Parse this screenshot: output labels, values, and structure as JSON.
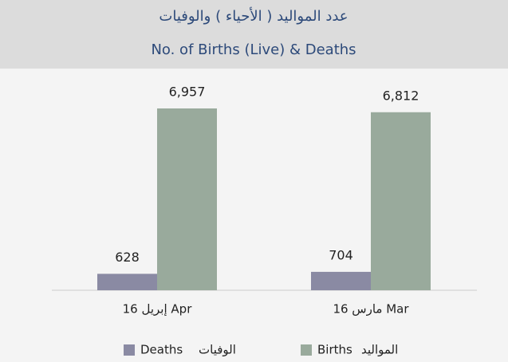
{
  "chart_data": {
    "type": "bar",
    "title": "عدد المواليد ( الأحياء ) والوفيات",
    "subtitle": "No. of Births (Live) & Deaths",
    "categories": [
      "إبريل 16 Apr",
      "مارس 16 Mar"
    ],
    "series": [
      {
        "name": "Deaths",
        "name_ar": "الوفيات",
        "color": "#8a8aa3",
        "values": [
          628,
          704
        ],
        "value_labels": [
          "628",
          "704"
        ]
      },
      {
        "name": "Births",
        "name_ar": "المواليد",
        "color": "#99aa9c",
        "values": [
          6957,
          6812
        ],
        "value_labels": [
          "6,957",
          "6,812"
        ]
      }
    ]
  }
}
